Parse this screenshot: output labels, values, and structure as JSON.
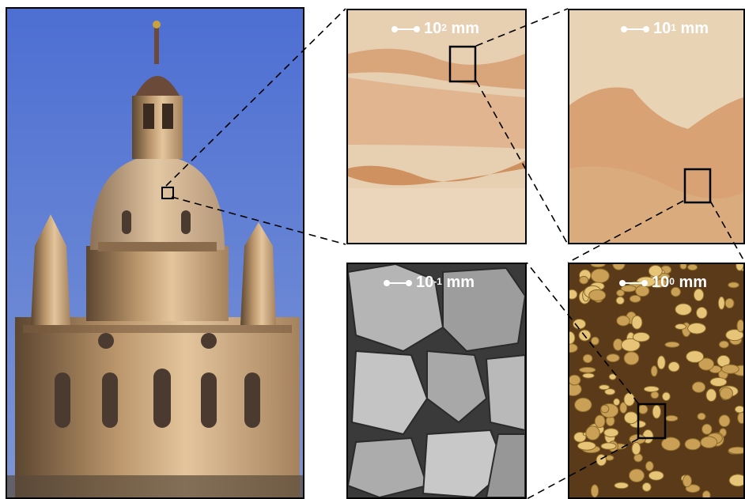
{
  "panels": [
    {
      "id": "church",
      "scale_base": "",
      "scale_exp": "",
      "scale_unit": ""
    },
    {
      "id": "sand-macro",
      "scale_base": "10",
      "scale_exp": "2",
      "scale_unit": "mm"
    },
    {
      "id": "sand-close",
      "scale_base": "10",
      "scale_exp": "1",
      "scale_unit": "mm"
    },
    {
      "id": "sem",
      "scale_base": "10",
      "scale_exp": "-1",
      "scale_unit": "mm"
    },
    {
      "id": "grains",
      "scale_base": "10",
      "scale_exp": "0",
      "scale_unit": "mm"
    }
  ],
  "colors": {
    "sky": "#5f7fd0",
    "sandstone": "#d9b48a",
    "band": "#c98a5e",
    "grain": "#d9b467",
    "sem": "#9a9a9a"
  }
}
